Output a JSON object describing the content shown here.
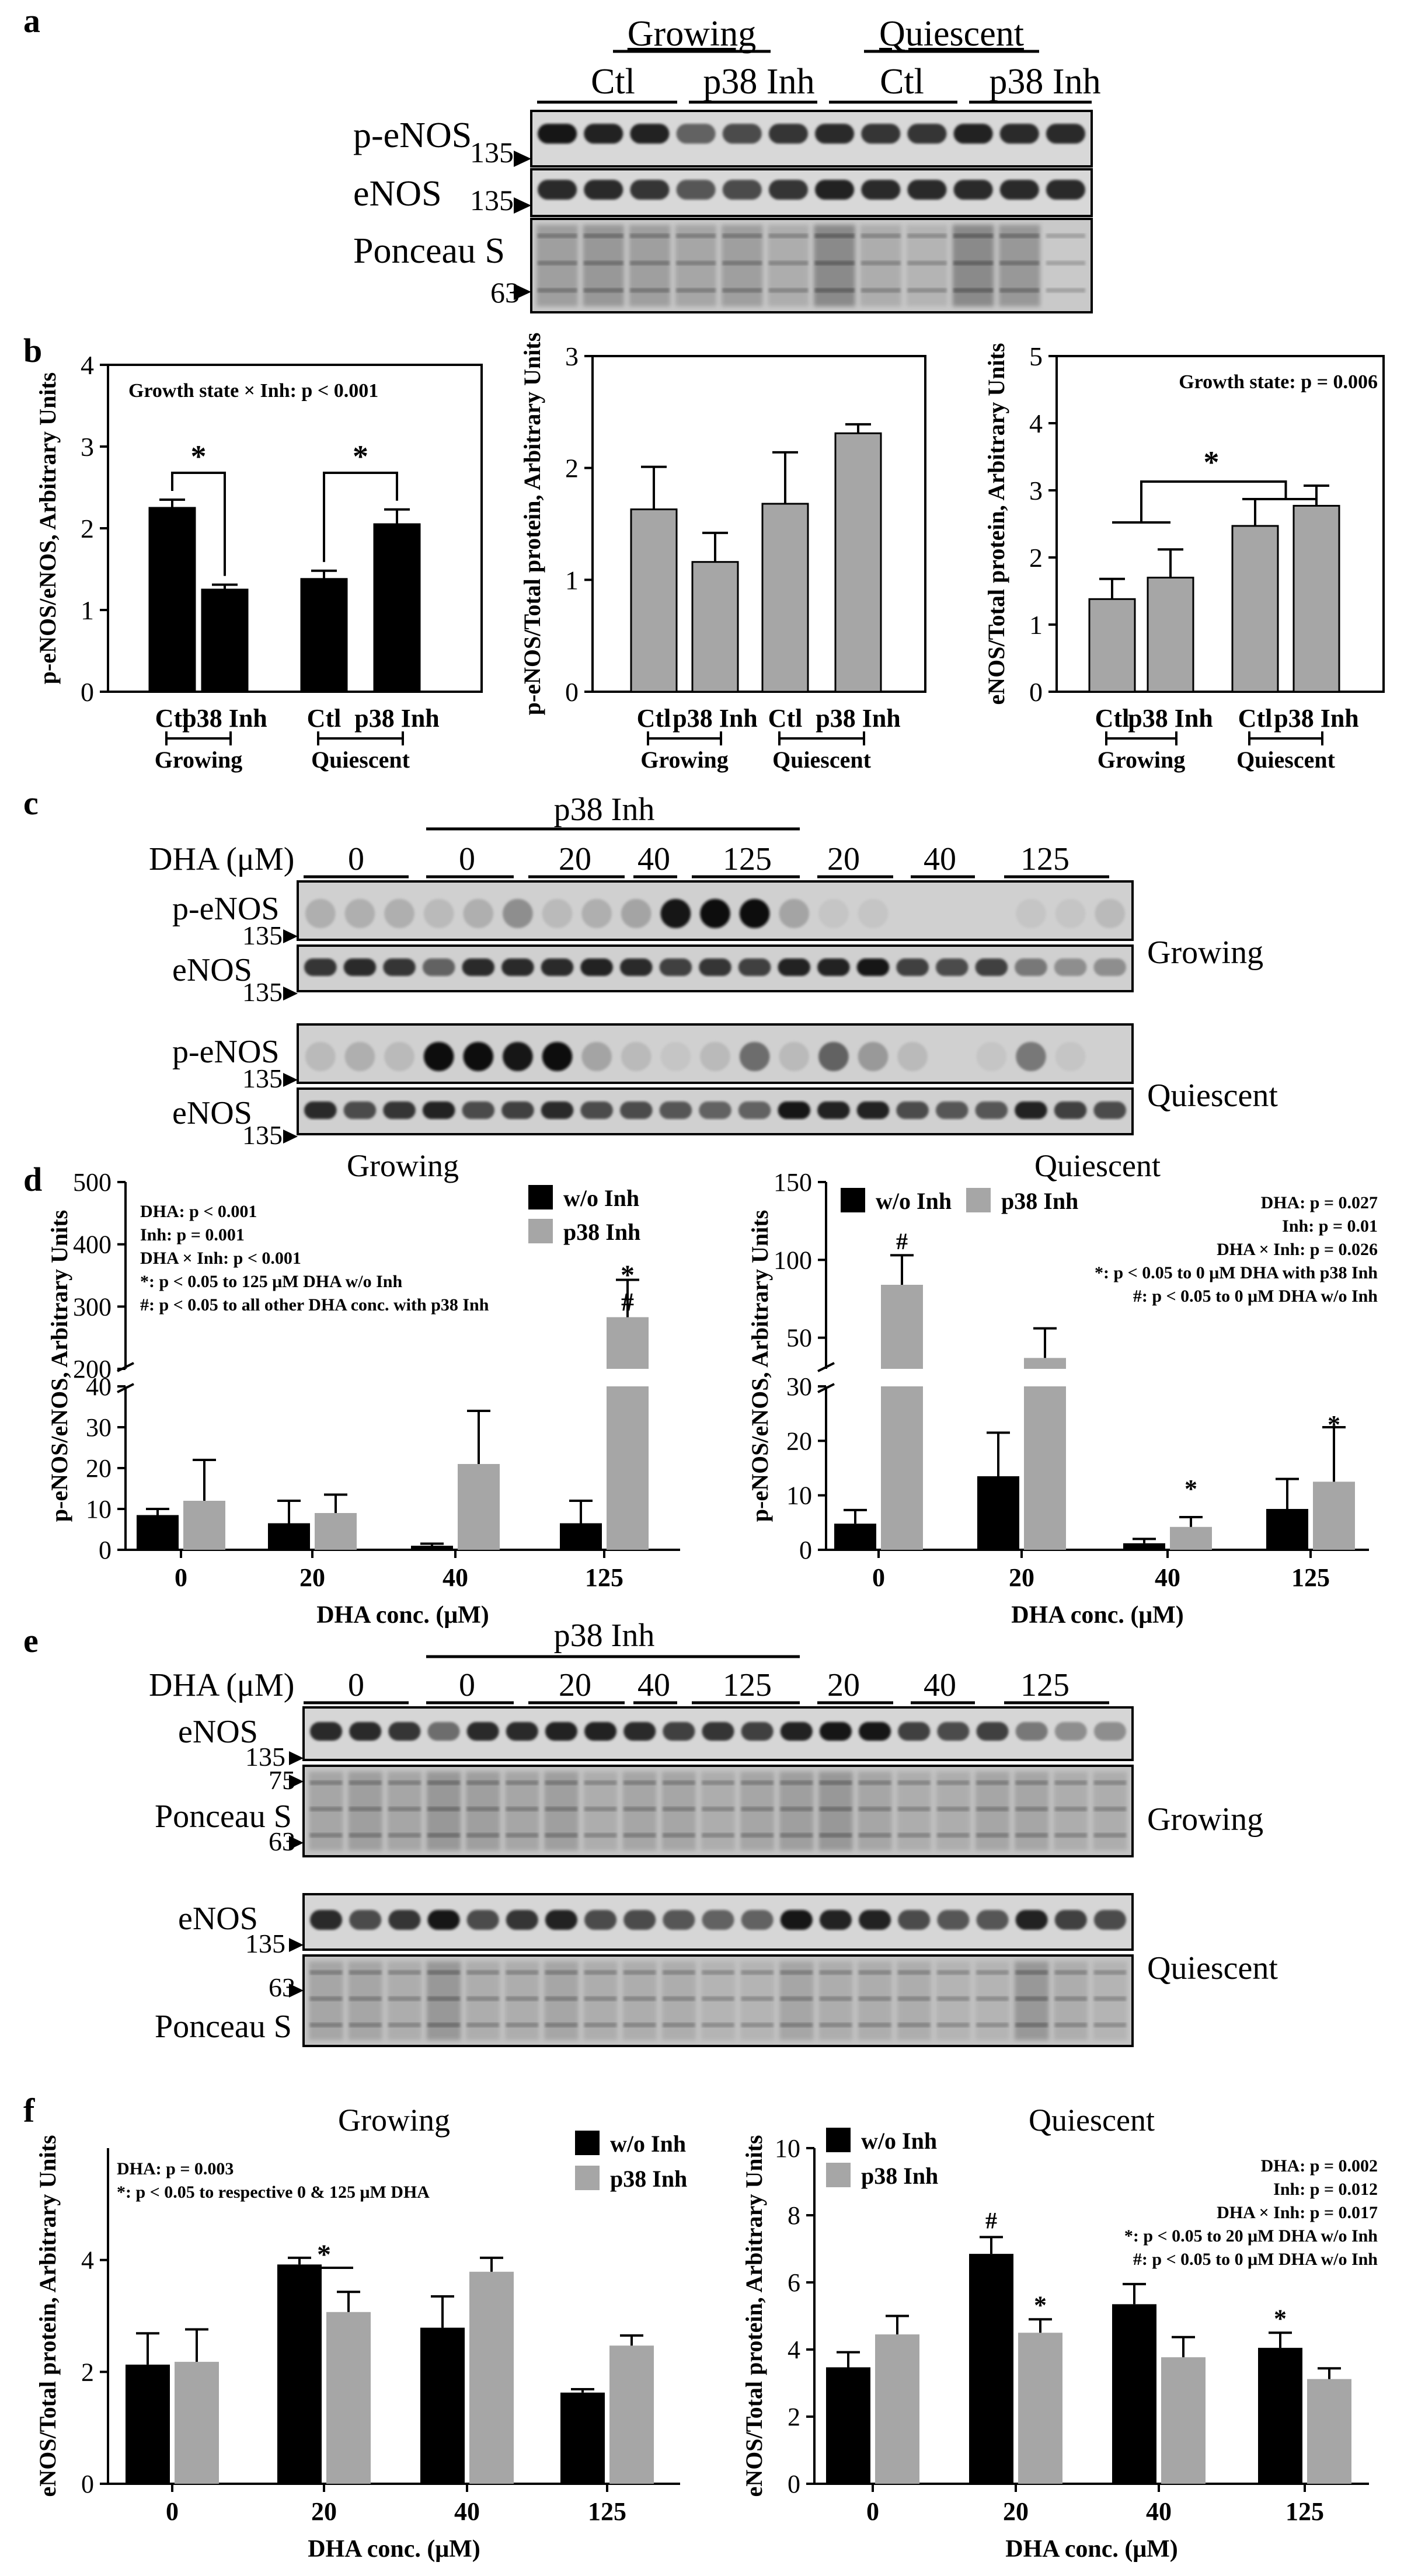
{
  "panel_labels": [
    "a",
    "b",
    "c",
    "d",
    "e",
    "f"
  ],
  "a": {
    "groups": [
      "Growing",
      "Quiescent"
    ],
    "subgroups": [
      "Ctl",
      "p38 Inh",
      "Ctl",
      "p38 Inh"
    ],
    "rows": [
      "p-eNOS",
      "eNOS",
      "Ponceau S"
    ],
    "markers": [
      "135",
      "135",
      "63"
    ]
  },
  "c": {
    "header": "p38 Inh",
    "dha_label": "DHA (μM)",
    "dha_values": [
      "0",
      "0",
      "20",
      "40",
      "125",
      "20",
      "40",
      "125"
    ],
    "rows": [
      "p-eNOS",
      "eNOS",
      "p-eNOS",
      "eNOS"
    ],
    "marker": "135",
    "conditions": [
      "Growing",
      "Quiescent"
    ]
  },
  "e": {
    "header": "p38 Inh",
    "dha_label": "DHA (μM)",
    "dha_values": [
      "0",
      "0",
      "20",
      "40",
      "125",
      "20",
      "40",
      "125"
    ],
    "rows": [
      "eNOS",
      "Ponceau S",
      "eNOS",
      "Ponceau S"
    ],
    "markers": [
      "135",
      "75",
      "63",
      "135",
      "63"
    ],
    "conditions": [
      "Growing",
      "Quiescent"
    ]
  },
  "colors": {
    "black_bar": "#000000",
    "gray_bar": "#a6a6a6",
    "blot_bg": "#bdbdbd"
  },
  "chart_data": [
    {
      "id": "b1",
      "type": "bar",
      "ylabel": "p-eNOS/eNOS, Arbitrary Units",
      "ylim": [
        0,
        4
      ],
      "yticks": [
        "0",
        "1",
        "2",
        "3",
        "4"
      ],
      "categories": [
        "Ctl",
        "p38 Inh",
        "Ctl",
        "p38 Inh"
      ],
      "groups": [
        "Growing",
        "Quiescent"
      ],
      "values": [
        2.25,
        1.25,
        1.38,
        2.05
      ],
      "errors": [
        0.1,
        0.06,
        0.1,
        0.18
      ],
      "stat": "Growth  state × Inh: p < 0.001",
      "sig": [
        "*",
        "*"
      ]
    },
    {
      "id": "b2",
      "type": "bar",
      "ylabel": "p-eNOS/Total protein, Arbitrary Units",
      "ylim": [
        0,
        3
      ],
      "yticks": [
        "0",
        "1",
        "2",
        "3"
      ],
      "categories": [
        "Ctl",
        "p38 Inh",
        "Ctl",
        "p38 Inh"
      ],
      "groups": [
        "Growing",
        "Quiescent"
      ],
      "values": [
        1.63,
        1.16,
        1.68,
        2.31
      ],
      "errors": [
        0.38,
        0.26,
        0.46,
        0.08
      ]
    },
    {
      "id": "b3",
      "type": "bar",
      "ylabel": "eNOS/Total protein, Arbitrary Units",
      "ylim": [
        0,
        5
      ],
      "yticks": [
        "0",
        "1",
        "2",
        "3",
        "4",
        "5"
      ],
      "categories": [
        "Ctl",
        "p38 Inh",
        "Ctl",
        "p38 Inh"
      ],
      "groups": [
        "Growing",
        "Quiescent"
      ],
      "values": [
        1.38,
        1.7,
        2.47,
        2.77
      ],
      "errors": [
        0.3,
        0.42,
        0.4,
        0.3
      ],
      "stat": "Growth  state: p = 0.006",
      "sig": [
        "*"
      ]
    },
    {
      "id": "d1",
      "type": "bar",
      "title": "Growing",
      "ylabel": "p-eNOS/eNOS, Arbitrary Units",
      "xlabel": "DHA conc. (μM)",
      "yticks_low": [
        "0",
        "10",
        "20",
        "30",
        "40"
      ],
      "yticks_high": [
        "200",
        "300",
        "400",
        "500"
      ],
      "categories": [
        "0",
        "20",
        "40",
        "125"
      ],
      "series": [
        {
          "name": "w/o Inh",
          "values": [
            8.5,
            6.5,
            1.0,
            6.5
          ],
          "errors": [
            1.5,
            5.5,
            0.5,
            5.5
          ]
        },
        {
          "name": "p38 Inh",
          "values": [
            12,
            9,
            21,
            283
          ],
          "errors": [
            10,
            4.5,
            13,
            60
          ]
        }
      ],
      "stats": [
        "DHA: p < 0.001",
        "Inh: p = 0.001",
        "DHA × Inh: p < 0.001",
        "*: p < 0.05 to 125 μM DHA w/o Inh",
        "#: p < 0.05 to all other DHA conc. with p38 Inh"
      ],
      "marks": [
        "*",
        "#"
      ]
    },
    {
      "id": "d2",
      "type": "bar",
      "title": "Quiescent",
      "ylabel": "p-eNOS/eNOS, Arbitrary Units",
      "xlabel": "DHA conc. (μM)",
      "yticks_low": [
        "0",
        "10",
        "20",
        "30"
      ],
      "yticks_high": [
        "50",
        "100",
        "150"
      ],
      "categories": [
        "0",
        "20",
        "40",
        "125"
      ],
      "series": [
        {
          "name": "w/o Inh",
          "values": [
            4.8,
            13.5,
            1.2,
            7.5
          ],
          "errors": [
            2.5,
            8,
            0.8,
            5.5
          ]
        },
        {
          "name": "p38 Inh",
          "values": [
            84,
            37,
            4.2,
            12.5
          ],
          "errors": [
            19,
            19,
            1.8,
            10
          ]
        }
      ],
      "stats": [
        "DHA: p = 0.027",
        "Inh: p = 0.01",
        "DHA × Inh: p = 0.026",
        "*: p < 0.05 to 0 μM DHA with p38 Inh",
        "#: p < 0.05 to 0 μM DHA w/o Inh"
      ],
      "marks": [
        "#",
        "*",
        "*"
      ]
    },
    {
      "id": "f1",
      "type": "bar",
      "title": "Growing",
      "ylabel": "eNOS/Total protein, Arbitrary Units",
      "xlabel": "DHA conc. (μM)",
      "ylim": [
        0,
        6
      ],
      "yticks": [
        "0",
        "2",
        "4"
      ],
      "categories": [
        "0",
        "20",
        "40",
        "125"
      ],
      "series": [
        {
          "name": "w/o Inh",
          "values": [
            2.13,
            3.92,
            2.79,
            1.63
          ],
          "errors": [
            0.56,
            0.12,
            0.56,
            0.06
          ]
        },
        {
          "name": "p38 Inh",
          "values": [
            2.18,
            3.07,
            3.79,
            2.47
          ],
          "errors": [
            0.58,
            0.36,
            0.25,
            0.18
          ]
        }
      ],
      "stats": [
        "DHA: p = 0.003",
        "*: p < 0.05 to respective 0 & 125 μM DHA"
      ],
      "marks": [
        "*"
      ]
    },
    {
      "id": "f2",
      "type": "bar",
      "title": "Quiescent",
      "ylabel": "eNOS/Total protein, Arbitrary Units",
      "xlabel": "DHA conc. (μM)",
      "ylim": [
        0,
        10
      ],
      "yticks": [
        "0",
        "2",
        "4",
        "6",
        "8",
        "10"
      ],
      "categories": [
        "0",
        "20",
        "40",
        "125"
      ],
      "series": [
        {
          "name": "w/o Inh",
          "values": [
            3.47,
            6.85,
            5.35,
            4.05
          ],
          "errors": [
            0.45,
            0.5,
            0.6,
            0.45
          ]
        },
        {
          "name": "p38 Inh",
          "values": [
            4.45,
            4.5,
            3.77,
            3.12
          ],
          "errors": [
            0.55,
            0.4,
            0.6,
            0.32
          ]
        }
      ],
      "stats": [
        "DHA: p = 0.002",
        "Inh: p = 0.012",
        "DHA × Inh: p = 0.017",
        "*: p < 0.05 to 20 μM DHA w/o Inh",
        "#: p < 0.05 to 0 μM DHA w/o Inh"
      ],
      "marks": [
        "#",
        "*",
        "*"
      ]
    }
  ]
}
